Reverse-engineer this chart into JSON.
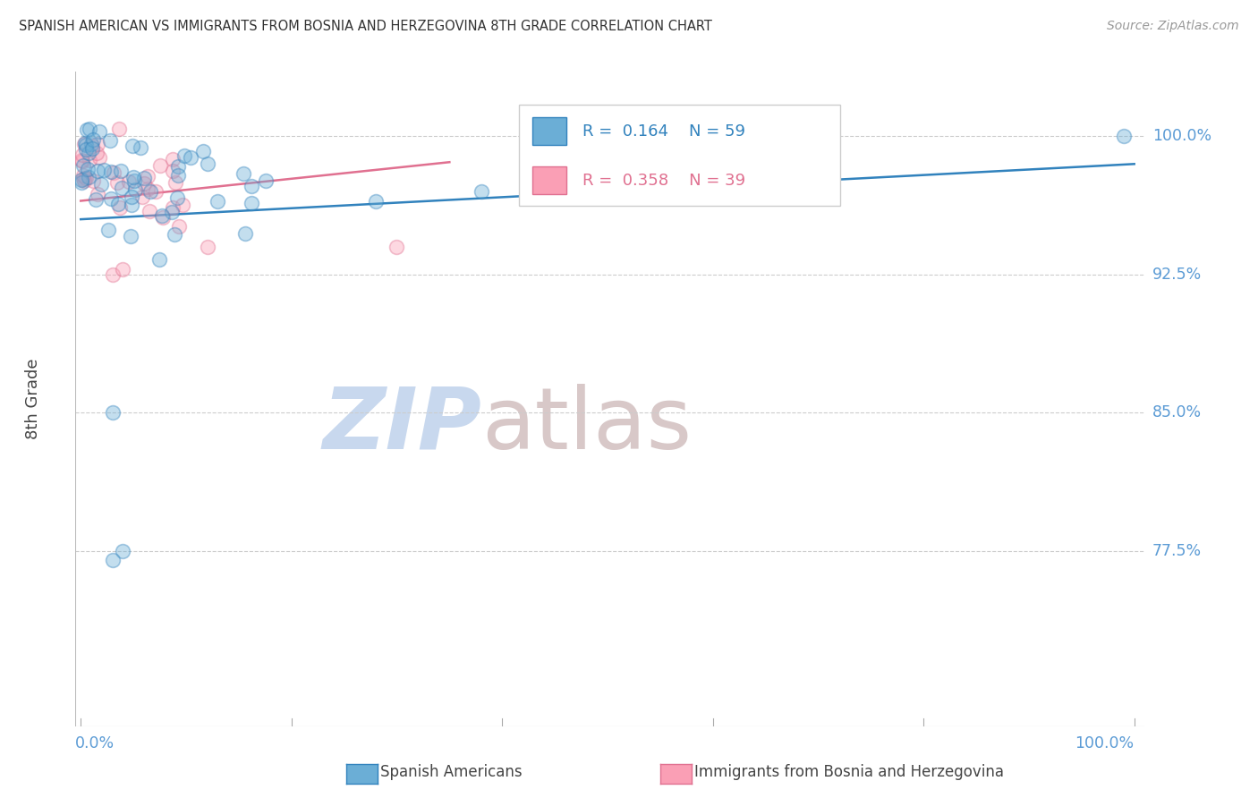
{
  "title": "SPANISH AMERICAN VS IMMIGRANTS FROM BOSNIA AND HERZEGOVINA 8TH GRADE CORRELATION CHART",
  "source": "Source: ZipAtlas.com",
  "ylabel": "8th Grade",
  "ytick_labels": [
    "100.0%",
    "92.5%",
    "85.0%",
    "77.5%"
  ],
  "ytick_values": [
    1.0,
    0.925,
    0.85,
    0.775
  ],
  "xlim": [
    0.0,
    1.0
  ],
  "ylim": [
    0.68,
    1.035
  ],
  "blue_R": 0.164,
  "blue_N": 59,
  "pink_R": 0.358,
  "pink_N": 39,
  "legend_label_blue": "Spanish Americans",
  "legend_label_pink": "Immigrants from Bosnia and Herzegovina",
  "blue_color": "#6baed6",
  "pink_color": "#fa9fb5",
  "blue_line_color": "#3182bd",
  "pink_line_color": "#e07090",
  "title_color": "#333333",
  "source_color": "#999999",
  "axis_label_color": "#444444",
  "ytick_color": "#5b9bd5",
  "xtick_color": "#5b9bd5",
  "grid_color": "#cccccc",
  "watermark_zip_color": "#c8d8ee",
  "watermark_atlas_color": "#d8c8c8",
  "blue_line_intercept": 0.955,
  "blue_line_slope": 0.03,
  "pink_line_intercept": 0.965,
  "pink_line_slope": 0.06,
  "marker_size": 130,
  "marker_alpha": 0.4,
  "marker_linewidth": 1.2
}
